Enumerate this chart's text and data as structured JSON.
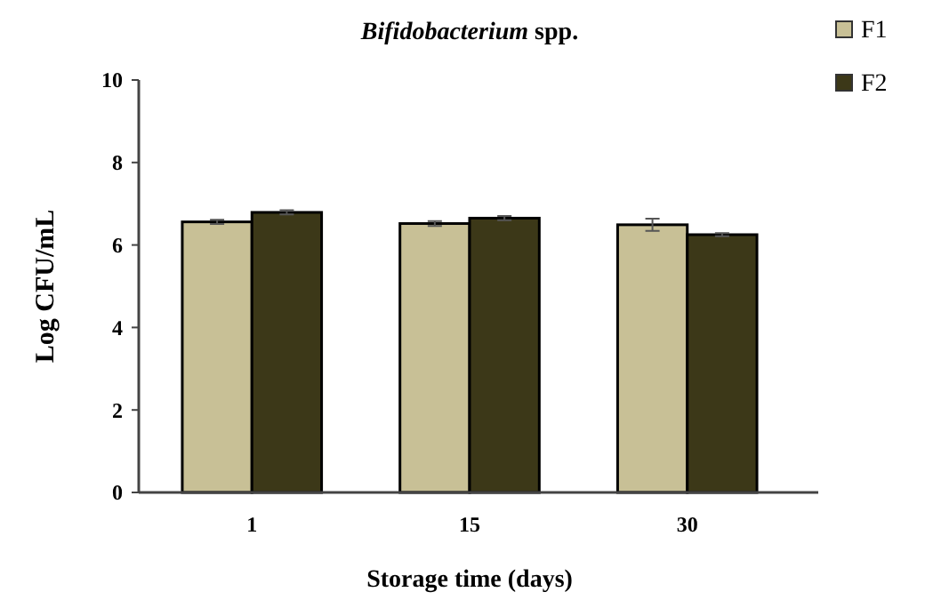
{
  "chart_data": {
    "type": "bar",
    "title": "Bifidobacterium spp.",
    "xlabel": "Storage time (days)",
    "ylabel": "Log CFU/mL",
    "categories": [
      "1",
      "15",
      "30"
    ],
    "series": [
      {
        "name": "F1",
        "color": "#c8c096",
        "values": [
          6.56,
          6.52,
          6.49
        ],
        "errors": [
          0.05,
          0.06,
          0.15
        ]
      },
      {
        "name": "F2",
        "color": "#3c3818",
        "values": [
          6.79,
          6.65,
          6.25
        ],
        "errors": [
          0.05,
          0.05,
          0.04
        ]
      }
    ],
    "ylim": [
      0,
      10
    ],
    "yticks": [
      0,
      2,
      4,
      6,
      8,
      10
    ],
    "legend": "top right",
    "grid": false
  }
}
